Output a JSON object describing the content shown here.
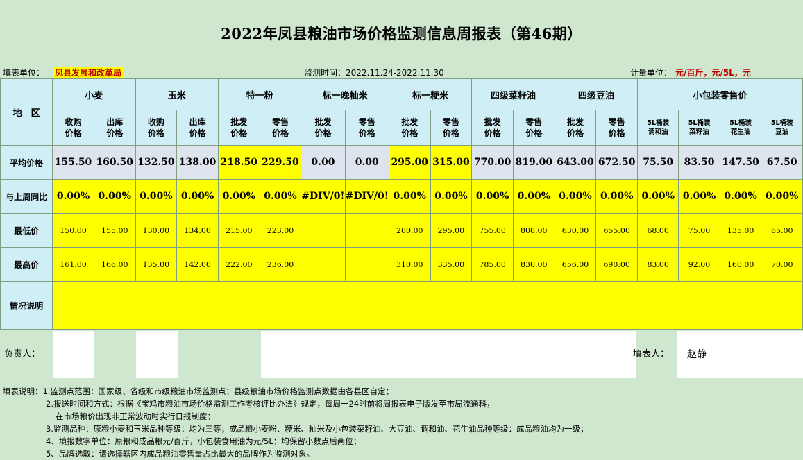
{
  "title": "2022年凤县粮油市场价格监测信息周报表（第46期）",
  "info": {
    "unit_label": "填表单位：",
    "unit_value": "凤县发展和改革局",
    "period": "监测时间：2022.11.24-2022.11.30",
    "measure_label": "计量单位：",
    "measure_value": "元/百斤，元/5L，元"
  },
  "table": {
    "region_header": "地　区",
    "groups": [
      "小麦",
      "玉米",
      "特一粉",
      "标一晚籼米",
      "标一粳米",
      "四级菜籽油",
      "四级豆油",
      "小包装零售价"
    ],
    "subheaders": [
      "收购价格",
      "出库价格",
      "收购价格",
      "出库价格",
      "批发价格",
      "零售价格",
      "批发价格",
      "零售价格",
      "批发价格",
      "零售价格",
      "批发价格",
      "零售价格",
      "批发价格",
      "零售价格",
      "5L桶装调和油",
      "5L桶装菜籽油",
      "5L桶装花生油",
      "5L桶装豆油"
    ],
    "row_labels": {
      "avg": "平均价格",
      "change": "与上周同比",
      "min": "最低价",
      "max": "最高价",
      "note": "情况说明"
    },
    "avg": [
      "155.50",
      "160.50",
      "132.50",
      "138.00",
      "218.50",
      "229.50",
      "0.00",
      "0.00",
      "295.00",
      "315.00",
      "770.00",
      "819.00",
      "643.00",
      "672.50",
      "75.50",
      "83.50",
      "147.50",
      "67.50"
    ],
    "change": [
      "0.00%",
      "0.00%",
      "0.00%",
      "0.00%",
      "0.00%",
      "0.00%",
      "#DIV/0!",
      "#DIV/0!",
      "0.00%",
      "0.00%",
      "0.00%",
      "0.00%",
      "0.00%",
      "0.00%",
      "0.00%",
      "0.00%",
      "0.00%",
      "0.00%"
    ],
    "min": [
      "150.00",
      "155.00",
      "130.00",
      "134.00",
      "215.00",
      "223.00",
      "",
      "",
      "280.00",
      "295.00",
      "755.00",
      "808.00",
      "630.00",
      "655.00",
      "68.00",
      "75.00",
      "135.00",
      "65.00"
    ],
    "max": [
      "161.00",
      "166.00",
      "135.00",
      "142.00",
      "222.00",
      "236.00",
      "",
      "",
      "310.00",
      "335.00",
      "785.00",
      "830.00",
      "656.00",
      "690.00",
      "83.00",
      "92.00",
      "160.00",
      "70.00"
    ]
  },
  "sign": {
    "responsible_label": "负责人：",
    "filler_label": "填表人：",
    "filler_name": "赵静"
  },
  "notes": [
    "填表说明：1.监测点范围：国家级、省级和市级粮油市场监测点；县级粮油市场价格监测点数据由各县区自定；",
    "2.报送时间和方式：根据《宝鸡市粮油市场价格监测工作考核评比办法》规定，每周一24时前将周报表电子版发至市局流通科，",
    "在市场粮价出现非正常波动时实行日报制度；",
    "3.监测品种：原粮小麦和玉米品种等级：均为三等；成品粮小麦粉、粳米、籼米及小包装菜籽油、大豆油、调和油、花生油品种等级：成品粮油均为一级；",
    "4、填报数字单位：原粮和成品粮元/百斤，小包装食用油为元/5L；均保留小数点后两位；",
    "5、品牌选取：请选择辖区内成品粮油零售量占比最大的品牌作为监测对象。"
  ]
}
